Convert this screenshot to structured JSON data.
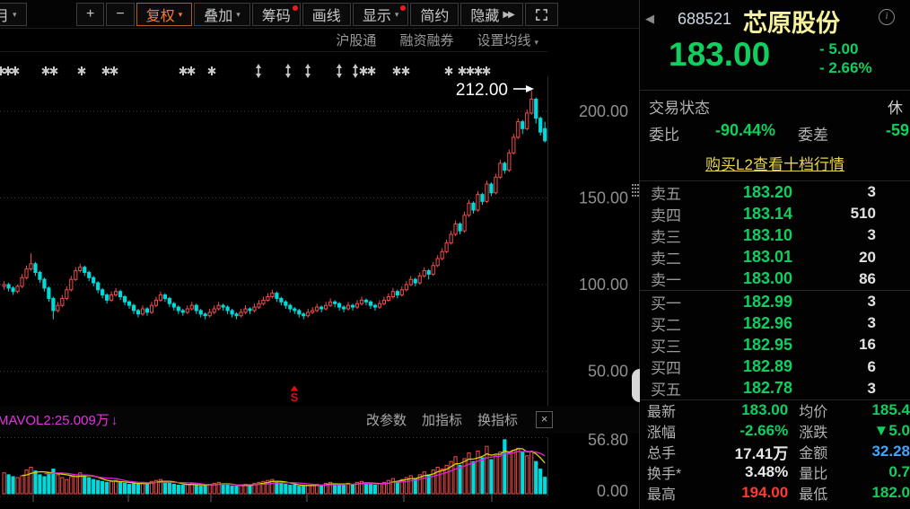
{
  "icons": {
    "caret_down": "▾",
    "double_right": "▶▶",
    "chevron_left": "◀",
    "info": "i",
    "close": "×",
    "down_arrow": "↓"
  },
  "toolbar": {
    "period": "月",
    "buttons": [
      {
        "label": "+"
      },
      {
        "label": "−"
      },
      {
        "label": "复权"
      },
      {
        "label": "叠加"
      },
      {
        "label": "筹码"
      },
      {
        "label": "画线"
      },
      {
        "label": "显示"
      },
      {
        "label": "简约"
      },
      {
        "label": "隐藏"
      }
    ]
  },
  "submenu": {
    "items": [
      "沪股通",
      "融资融券",
      "设置均线"
    ]
  },
  "indicator_bar": {
    "label": "MAVOL2:25.009万",
    "buttons": [
      "改参数",
      "加指标",
      "换指标"
    ]
  },
  "quote": {
    "code": "688521",
    "name": "芯原股份",
    "last": "183.00",
    "change": "- 5.00",
    "change_pct": "- 2.66%",
    "status_label": "交易状态",
    "status_value": "休",
    "weibi_label": "委比",
    "weibi_value": "-90.44%",
    "weicha_label": "委差",
    "weicha_value": "-59",
    "l2_link": "购买L2查看十档行情"
  },
  "order_book": {
    "sell": [
      {
        "label": "卖五",
        "price": "183.20",
        "vol": "3"
      },
      {
        "label": "卖四",
        "price": "183.14",
        "vol": "510"
      },
      {
        "label": "卖三",
        "price": "183.10",
        "vol": "3"
      },
      {
        "label": "卖二",
        "price": "183.01",
        "vol": "20"
      },
      {
        "label": "卖一",
        "price": "183.00",
        "vol": "86"
      }
    ],
    "buy": [
      {
        "label": "买一",
        "price": "182.99",
        "vol": "3"
      },
      {
        "label": "买二",
        "price": "182.96",
        "vol": "3"
      },
      {
        "label": "买三",
        "price": "182.95",
        "vol": "16"
      },
      {
        "label": "买四",
        "price": "182.89",
        "vol": "6"
      },
      {
        "label": "买五",
        "price": "182.78",
        "vol": "3"
      }
    ]
  },
  "stats": {
    "rows": [
      {
        "l1": "最新",
        "v1": "183.00",
        "l2": "均价",
        "v2": "185.4"
      },
      {
        "l1": "涨幅",
        "v1": "-2.66%",
        "l2": "涨跌",
        "v2": "▼5.0"
      },
      {
        "l1": "总手",
        "v1": "17.41万",
        "l2": "金额",
        "v2": "32.28"
      },
      {
        "l1": "换手*",
        "v1": "3.48%",
        "l2": "量比",
        "v2": "0.7"
      },
      {
        "l1": "最高",
        "v1": "194.00",
        "l2": "最低",
        "v2": "182.0"
      }
    ]
  },
  "chart_data": {
    "type": "candlestick",
    "symbol": "688521 芯原股份",
    "price_axis": [
      {
        "v": 200,
        "label": "200.00"
      },
      {
        "v": 150,
        "label": "150.00"
      },
      {
        "v": 100,
        "label": "100.00"
      },
      {
        "v": 50,
        "label": "50.00"
      }
    ],
    "volume_axis": [
      {
        "v": 56.8,
        "label": "56.80"
      },
      {
        "v": 0,
        "label": "0.00"
      }
    ],
    "annotation": {
      "text": "212.00",
      "value": 212.0
    },
    "signal": {
      "text": "S"
    },
    "colors": {
      "up": "#ef4e4e",
      "down": "#00dada",
      "ma1": "#d6d600",
      "ma2": "#dd22dd",
      "grid": "#3c3c3c",
      "label": "#909090",
      "marker": "#c8c8c8",
      "annotation": "#ffffff",
      "signal": "#dd1111"
    },
    "event_markers": {
      "stars": [
        1,
        9,
        17,
        51,
        60,
        91,
        118,
        127,
        204,
        213,
        236,
        405,
        414,
        442,
        452,
        500,
        515,
        524,
        533,
        542
      ],
      "arrows": [
        288,
        321,
        343,
        378,
        396
      ]
    },
    "ma_periods": [
      5,
      10
    ],
    "candles": [
      [
        99,
        102,
        97,
        100
      ],
      [
        100,
        101,
        96,
        98
      ],
      [
        98,
        99,
        94,
        96
      ],
      [
        96,
        100,
        95,
        99
      ],
      [
        99,
        106,
        98,
        104
      ],
      [
        104,
        111,
        103,
        109
      ],
      [
        109,
        118,
        108,
        112
      ],
      [
        112,
        113,
        105,
        107
      ],
      [
        107,
        108,
        101,
        103
      ],
      [
        103,
        104,
        96,
        98
      ],
      [
        98,
        99,
        90,
        92
      ],
      [
        92,
        93,
        80,
        85
      ],
      [
        85,
        90,
        84,
        88
      ],
      [
        88,
        94,
        87,
        92
      ],
      [
        92,
        99,
        91,
        97
      ],
      [
        97,
        105,
        96,
        103
      ],
      [
        103,
        110,
        102,
        108
      ],
      [
        108,
        112,
        107,
        110
      ],
      [
        110,
        111,
        105,
        107
      ],
      [
        107,
        108,
        102,
        104
      ],
      [
        104,
        105,
        99,
        101
      ],
      [
        101,
        102,
        95,
        97
      ],
      [
        97,
        98,
        92,
        94
      ],
      [
        94,
        95,
        89,
        91
      ],
      [
        91,
        96,
        90,
        94
      ],
      [
        94,
        98,
        93,
        96
      ],
      [
        96,
        97,
        91,
        93
      ],
      [
        93,
        94,
        88,
        90
      ],
      [
        90,
        91,
        86,
        88
      ],
      [
        88,
        89,
        83,
        85
      ],
      [
        85,
        86,
        81,
        83
      ],
      [
        83,
        88,
        82,
        86
      ],
      [
        86,
        87,
        82,
        84
      ],
      [
        84,
        90,
        83,
        88
      ],
      [
        88,
        93,
        87,
        91
      ],
      [
        91,
        96,
        90,
        94
      ],
      [
        94,
        95,
        90,
        92
      ],
      [
        92,
        93,
        87,
        89
      ],
      [
        89,
        90,
        85,
        87
      ],
      [
        87,
        88,
        83,
        85
      ],
      [
        85,
        86,
        82,
        84
      ],
      [
        84,
        88,
        83,
        86
      ],
      [
        86,
        90,
        85,
        88
      ],
      [
        88,
        89,
        83,
        85
      ],
      [
        85,
        86,
        81,
        83
      ],
      [
        83,
        84,
        80,
        82
      ],
      [
        82,
        86,
        81,
        84
      ],
      [
        84,
        88,
        83,
        86
      ],
      [
        86,
        90,
        85,
        88
      ],
      [
        88,
        89,
        85,
        87
      ],
      [
        87,
        88,
        83,
        85
      ],
      [
        85,
        86,
        81,
        83
      ],
      [
        83,
        84,
        80,
        82
      ],
      [
        82,
        86,
        81,
        84
      ],
      [
        84,
        88,
        83,
        86
      ],
      [
        86,
        87,
        83,
        85
      ],
      [
        85,
        89,
        84,
        87
      ],
      [
        87,
        91,
        86,
        89
      ],
      [
        89,
        93,
        88,
        91
      ],
      [
        91,
        95,
        90,
        93
      ],
      [
        93,
        97,
        92,
        95
      ],
      [
        95,
        96,
        90,
        92
      ],
      [
        92,
        93,
        88,
        90
      ],
      [
        90,
        91,
        86,
        88
      ],
      [
        88,
        89,
        84,
        86
      ],
      [
        86,
        87,
        83,
        85
      ],
      [
        85,
        86,
        81,
        83
      ],
      [
        83,
        84,
        80,
        82
      ],
      [
        82,
        86,
        81,
        84
      ],
      [
        84,
        87,
        83,
        85
      ],
      [
        85,
        89,
        84,
        87
      ],
      [
        87,
        88,
        84,
        86
      ],
      [
        86,
        90,
        85,
        88
      ],
      [
        88,
        92,
        87,
        90
      ],
      [
        90,
        91,
        87,
        89
      ],
      [
        89,
        90,
        85,
        87
      ],
      [
        87,
        88,
        84,
        86
      ],
      [
        86,
        90,
        85,
        88
      ],
      [
        88,
        89,
        85,
        87
      ],
      [
        87,
        91,
        86,
        89
      ],
      [
        89,
        93,
        88,
        91
      ],
      [
        91,
        92,
        88,
        90
      ],
      [
        90,
        91,
        86,
        88
      ],
      [
        88,
        89,
        85,
        87
      ],
      [
        87,
        91,
        86,
        89
      ],
      [
        89,
        93,
        88,
        91
      ],
      [
        91,
        95,
        90,
        93
      ],
      [
        93,
        98,
        92,
        96
      ],
      [
        96,
        97,
        92,
        94
      ],
      [
        94,
        99,
        93,
        97
      ],
      [
        97,
        102,
        96,
        100
      ],
      [
        100,
        105,
        99,
        103
      ],
      [
        103,
        104,
        99,
        101
      ],
      [
        101,
        107,
        100,
        105
      ],
      [
        105,
        110,
        104,
        108
      ],
      [
        108,
        109,
        103,
        106
      ],
      [
        106,
        113,
        105,
        111
      ],
      [
        111,
        117,
        110,
        115
      ],
      [
        115,
        121,
        114,
        119
      ],
      [
        119,
        126,
        118,
        124
      ],
      [
        124,
        131,
        123,
        129
      ],
      [
        129,
        137,
        128,
        135
      ],
      [
        135,
        136,
        129,
        131
      ],
      [
        131,
        142,
        130,
        140
      ],
      [
        140,
        149,
        139,
        147
      ],
      [
        147,
        148,
        141,
        143
      ],
      [
        143,
        154,
        142,
        152
      ],
      [
        152,
        153,
        146,
        148
      ],
      [
        148,
        160,
        147,
        158
      ],
      [
        158,
        159,
        151,
        153
      ],
      [
        153,
        164,
        152,
        162
      ],
      [
        162,
        172,
        161,
        170
      ],
      [
        170,
        171,
        164,
        166
      ],
      [
        166,
        178,
        165,
        176
      ],
      [
        176,
        187,
        175,
        185
      ],
      [
        185,
        196,
        184,
        194
      ],
      [
        194,
        195,
        187,
        190
      ],
      [
        190,
        201,
        189,
        199
      ],
      [
        199,
        212,
        198,
        207
      ],
      [
        207,
        208,
        193,
        196
      ],
      [
        196,
        197,
        186,
        188
      ],
      [
        190,
        194,
        182,
        183
      ]
    ],
    "volumes": [
      22,
      20,
      18,
      17,
      19,
      25,
      28,
      24,
      20,
      18,
      22,
      26,
      20,
      17,
      15,
      18,
      20,
      22,
      19,
      17,
      15,
      14,
      13,
      12,
      13,
      14,
      12,
      11,
      10,
      11,
      10,
      12,
      11,
      13,
      14,
      15,
      13,
      11,
      10,
      9,
      9,
      10,
      11,
      9,
      8,
      9,
      10,
      11,
      12,
      10,
      9,
      8,
      8,
      9,
      10,
      9,
      11,
      12,
      13,
      14,
      15,
      12,
      11,
      10,
      9,
      9,
      8,
      8,
      9,
      9,
      10,
      9,
      11,
      12,
      10,
      9,
      9,
      11,
      10,
      12,
      13,
      11,
      10,
      9,
      11,
      12,
      14,
      16,
      13,
      15,
      17,
      19,
      16,
      20,
      23,
      20,
      25,
      28,
      26,
      30,
      34,
      39,
      30,
      37,
      43,
      34,
      45,
      38,
      50,
      36,
      40,
      44,
      57,
      42,
      46,
      48,
      44,
      40,
      45,
      34,
      26,
      17.4
    ]
  }
}
